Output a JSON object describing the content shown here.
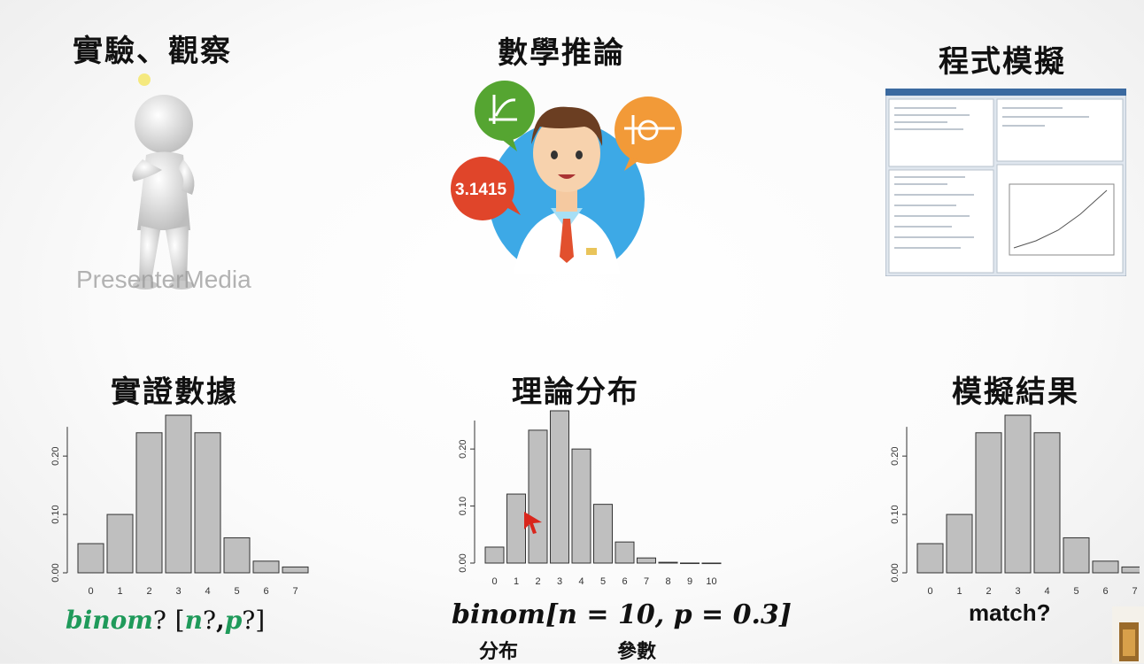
{
  "columns": {
    "experiment": {
      "title": "實驗、觀察",
      "watermark": "PresenterMedia",
      "figure_label": "實證數據",
      "caption_func": "binom",
      "caption_q1": "?",
      "caption_open": "[",
      "caption_n": "n",
      "caption_q2": "?",
      "caption_comma": ",",
      "caption_p": "p",
      "caption_q3": "?",
      "caption_close": "]"
    },
    "math": {
      "title": "數學推論",
      "bubble_pi": "3.1415",
      "figure_label": "理論分布",
      "caption": "binom[n = 10, p = 0.3]",
      "label_distribution": "分布",
      "label_params": "參數"
    },
    "simulation": {
      "title": "程式模擬",
      "figure_label": "模擬結果",
      "caption": "match?"
    }
  },
  "chart_data": [
    {
      "type": "bar",
      "categories": [
        "0",
        "1",
        "2",
        "3",
        "4",
        "5",
        "6",
        "7"
      ],
      "values": [
        0.05,
        0.1,
        0.24,
        0.27,
        0.24,
        0.06,
        0.02,
        0.01
      ],
      "yticks": [
        "0.00",
        "0.10",
        "0.20"
      ],
      "ylim": [
        0,
        0.27
      ],
      "bar_color": "#bfbfbf"
    },
    {
      "type": "bar",
      "categories": [
        "0",
        "1",
        "2",
        "3",
        "4",
        "5",
        "6",
        "7",
        "8",
        "9",
        "10"
      ],
      "values": [
        0.028,
        0.121,
        0.233,
        0.267,
        0.2,
        0.103,
        0.037,
        0.009,
        0.0014,
        0.0001,
        1e-05
      ],
      "yticks": [
        "0.00",
        "0.10",
        "0.20"
      ],
      "ylim": [
        0,
        0.267
      ],
      "bar_color": "#bfbfbf"
    },
    {
      "type": "bar",
      "categories": [
        "0",
        "1",
        "2",
        "3",
        "4",
        "5",
        "6",
        "7"
      ],
      "values": [
        0.05,
        0.1,
        0.24,
        0.27,
        0.24,
        0.06,
        0.02,
        0.01
      ],
      "yticks": [
        "0.00",
        "0.10",
        "0.20"
      ],
      "ylim": [
        0,
        0.27
      ],
      "bar_color": "#bfbfbf"
    }
  ],
  "colors": {
    "accent_green": "#1f9a5a",
    "pointer_red": "#d9261c"
  }
}
